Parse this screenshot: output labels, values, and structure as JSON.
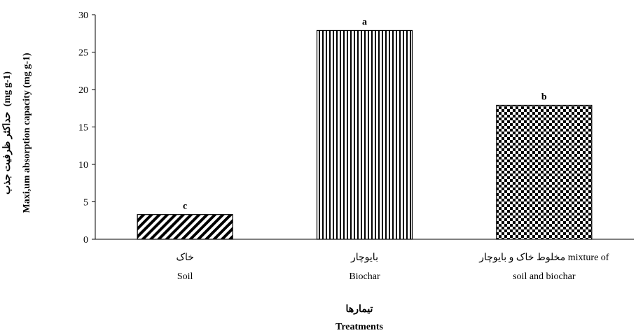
{
  "chart_data": {
    "type": "bar",
    "categories": [
      {
        "fa": "خاک",
        "en": "Soil"
      },
      {
        "fa": "بایوچار",
        "en": "Biochar"
      },
      {
        "fa": "مخلوط خاک و بایوچار",
        "en_inline": "mixture of",
        "en": "soil and biochar"
      }
    ],
    "values": [
      3.3,
      27.9,
      17.9
    ],
    "significance": [
      "c",
      "a",
      "b"
    ],
    "patterns": [
      "diagonal-stripes",
      "vertical-stripes",
      "checkerboard"
    ],
    "ylim": [
      0,
      30
    ],
    "yticks": [
      "0",
      "5",
      "10",
      "15",
      "20",
      "25",
      "30"
    ],
    "ylabel_fa": "حداکثر ظرفیت جذب",
    "ylabel_fa_unit": "(mg g-1)",
    "ylabel_en": "Maxi,um absorption capacity (mg g-1)",
    "ylabel_unit_top": "(mg g-1)",
    "xlabel_fa": "تیمارها",
    "xlabel_en": "Treatments",
    "grid": false,
    "legend": "none",
    "bar_color": "#000000"
  }
}
